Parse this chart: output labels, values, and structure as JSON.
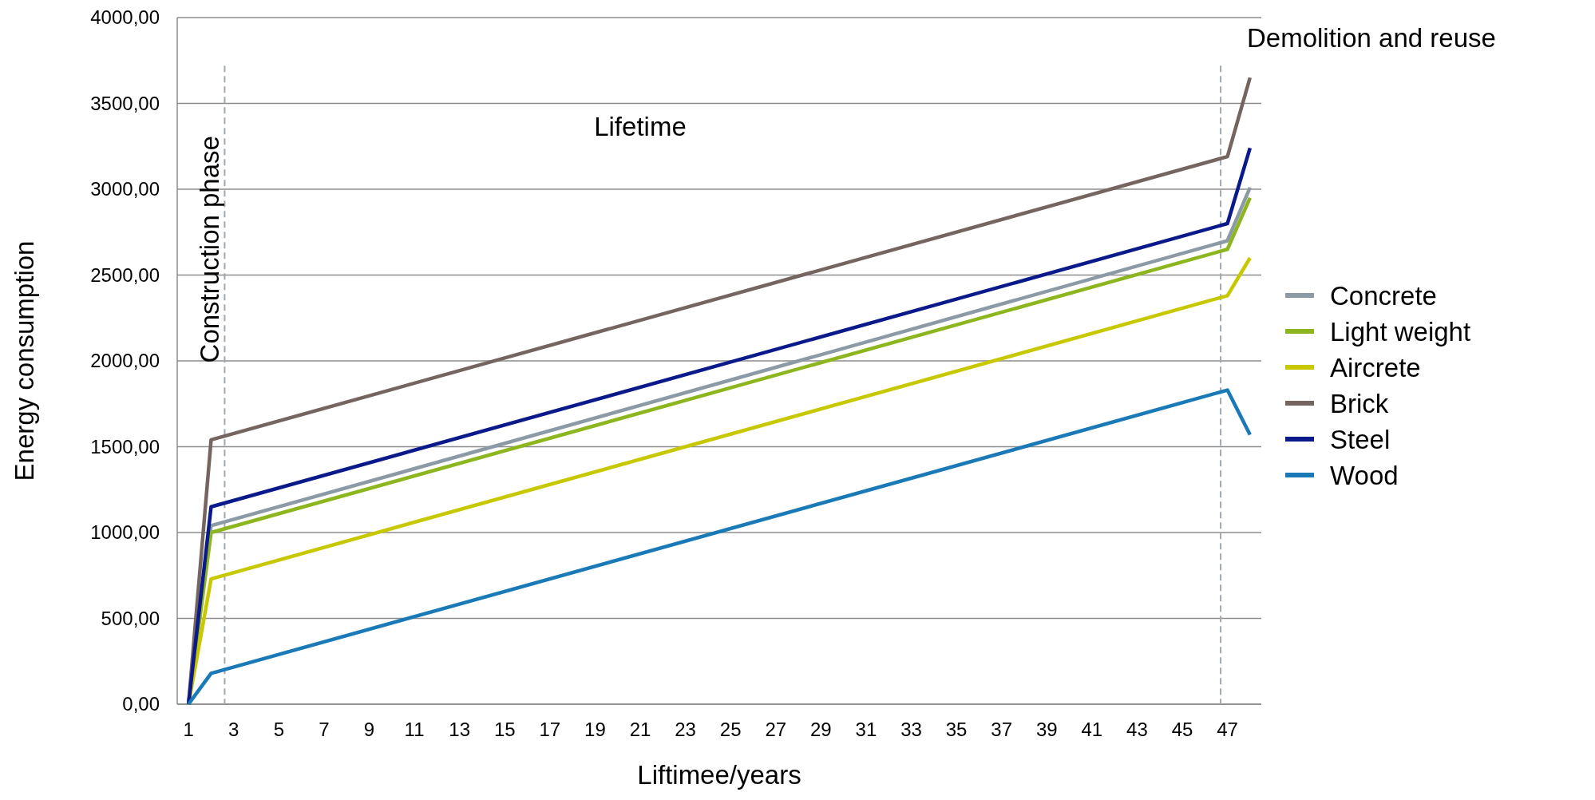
{
  "chart_data": {
    "type": "line",
    "xlabel": "Liftimee/years",
    "ylabel": "Energy consumption",
    "annotations": [
      "Construction phase",
      "Lifetime",
      "Demolition and reuse"
    ],
    "xlim": [
      0.5,
      48.5
    ],
    "xticks": [
      1,
      3,
      5,
      7,
      9,
      11,
      13,
      15,
      17,
      19,
      21,
      23,
      25,
      27,
      29,
      31,
      33,
      35,
      37,
      39,
      41,
      43,
      45,
      47
    ],
    "ylim": [
      0,
      4000
    ],
    "yticks": [
      {
        "value": 0,
        "label": "0,00"
      },
      {
        "value": 500,
        "label": "500,00"
      },
      {
        "value": 1000,
        "label": "1000,00"
      },
      {
        "value": 1500,
        "label": "1500,00"
      },
      {
        "value": 2000,
        "label": "2000,00"
      },
      {
        "value": 2500,
        "label": "2500,00"
      },
      {
        "value": 3000,
        "label": "3000,00"
      },
      {
        "value": 3500,
        "label": "3500,00"
      },
      {
        "value": 4000,
        "label": "4000,00"
      }
    ],
    "grid": "y",
    "legend": "right",
    "marker": "none",
    "line_style": "solid",
    "ref_lines": [
      {
        "axis": "x",
        "value": 2.6,
        "color": "#a0a8b0",
        "line_style": "dashed"
      },
      {
        "axis": "x",
        "value": 46.7,
        "color": "#a0a8b0",
        "line_style": "dashed"
      }
    ],
    "series": [
      {
        "name": "Concrete",
        "color": "#8c9aa6",
        "x": [
          1,
          2,
          47,
          48
        ],
        "values": [
          0,
          1040,
          2700,
          3010
        ]
      },
      {
        "name": "Light weight",
        "color": "#8db51d",
        "x": [
          1,
          2,
          47,
          48
        ],
        "values": [
          0,
          1000,
          2650,
          2950
        ]
      },
      {
        "name": "Aircrete",
        "color": "#c8c800",
        "x": [
          1,
          2,
          47,
          48
        ],
        "values": [
          0,
          730,
          2380,
          2600
        ]
      },
      {
        "name": "Brick",
        "color": "#756560",
        "x": [
          1,
          2,
          47,
          48
        ],
        "values": [
          0,
          1540,
          3190,
          3650
        ]
      },
      {
        "name": "Steel",
        "color": "#0a1a8a",
        "x": [
          1,
          2,
          47,
          48
        ],
        "values": [
          0,
          1150,
          2800,
          3240
        ]
      },
      {
        "name": "Wood",
        "color": "#1a7ab8",
        "x": [
          1,
          2,
          47,
          48
        ],
        "values": [
          0,
          180,
          1830,
          1570
        ]
      }
    ]
  }
}
